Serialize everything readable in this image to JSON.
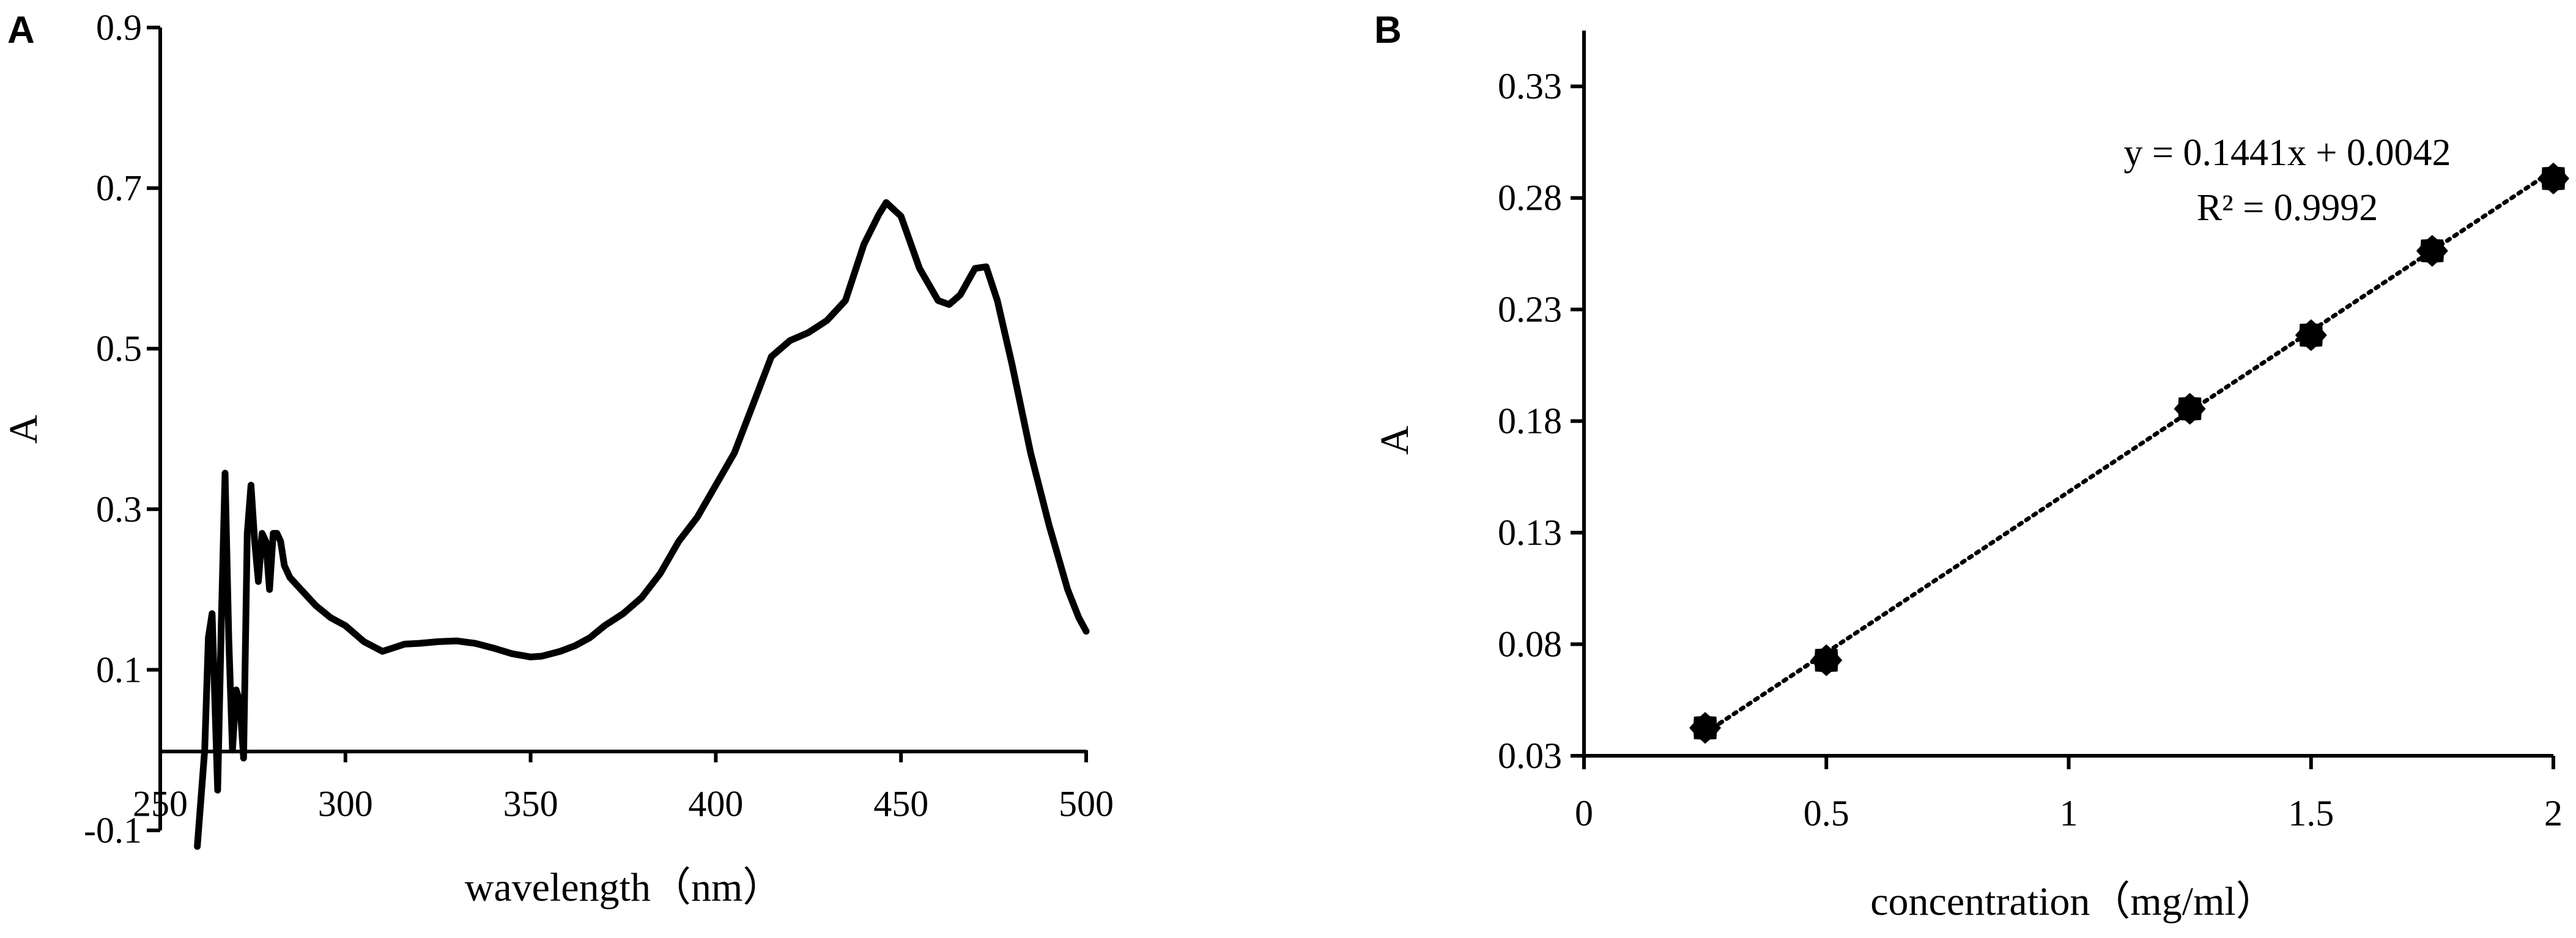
{
  "chart_data": [
    {
      "panel": "A",
      "type": "line",
      "xlabel": "wavelength（nm）",
      "ylabel": "A",
      "xlim": [
        250,
        500
      ],
      "ylim": [
        -0.1,
        0.9
      ],
      "x_ticks": [
        250,
        300,
        350,
        400,
        450,
        500
      ],
      "y_ticks": [
        -0.1,
        0.1,
        0.3,
        0.5,
        0.7,
        0.9
      ],
      "x_tick_labels": [
        "250",
        "300",
        "350",
        "400",
        "450",
        "500"
      ],
      "y_tick_labels": [
        "-0.1",
        "0.1",
        "0.3",
        "0.5",
        "0.7",
        "0.9"
      ],
      "grid": false,
      "series": [
        {
          "x": [
            260,
            262,
            263,
            264,
            265.5,
            266.5,
            267.5,
            268.5,
            269.5,
            270.5,
            271.5,
            272.5,
            273.5,
            274.5,
            275.5,
            276.5,
            277.5,
            278.5,
            279.5,
            280.5,
            281.5,
            282.5,
            283.5,
            285,
            288,
            292,
            296,
            300,
            305,
            310,
            312,
            316,
            320,
            325,
            330,
            335,
            340,
            345,
            350,
            353,
            358,
            362,
            366,
            370,
            375,
            380,
            385,
            390,
            395,
            400,
            405,
            410,
            415,
            420,
            425,
            430,
            435,
            440,
            444,
            446,
            450,
            455,
            460,
            463,
            466,
            470,
            473,
            476,
            480,
            485,
            490,
            495,
            498,
            500
          ],
          "y": [
            -0.12,
            0.0,
            0.14,
            0.17,
            -0.05,
            0.16,
            0.345,
            0.14,
            0.0,
            0.075,
            0.06,
            -0.01,
            0.27,
            0.33,
            0.26,
            0.21,
            0.27,
            0.26,
            0.2,
            0.27,
            0.27,
            0.26,
            0.23,
            0.215,
            0.2,
            0.18,
            0.165,
            0.155,
            0.135,
            0.123,
            0.126,
            0.132,
            0.133,
            0.135,
            0.136,
            0.133,
            0.127,
            0.12,
            0.116,
            0.117,
            0.123,
            0.13,
            0.14,
            0.155,
            0.17,
            0.19,
            0.22,
            0.26,
            0.29,
            0.33,
            0.37,
            0.43,
            0.49,
            0.51,
            0.52,
            0.535,
            0.56,
            0.63,
            0.667,
            0.682,
            0.665,
            0.6,
            0.56,
            0.555,
            0.567,
            0.6,
            0.602,
            0.56,
            0.48,
            0.37,
            0.28,
            0.2,
            0.165,
            0.148
          ]
        }
      ]
    },
    {
      "panel": "B",
      "type": "scatter",
      "xlabel": "concentration（mg/ml）",
      "ylabel": "A",
      "xlim": [
        0,
        2
      ],
      "ylim": [
        0.03,
        0.355
      ],
      "x_ticks": [
        0,
        0.5,
        1,
        1.5,
        2
      ],
      "y_ticks": [
        0.03,
        0.08,
        0.13,
        0.18,
        0.23,
        0.28,
        0.33
      ],
      "x_tick_labels": [
        "0",
        "0.5",
        "1",
        "1.5",
        "2"
      ],
      "y_tick_labels": [
        "0.03",
        "0.08",
        "0.13",
        "0.18",
        "0.23",
        "0.28",
        "0.33"
      ],
      "grid": false,
      "series": [
        {
          "x": [
            0.25,
            0.5,
            1.25,
            1.5,
            1.75,
            2.0
          ],
          "y": [
            0.0425,
            0.0728,
            0.1855,
            0.2185,
            0.2563,
            0.2887
          ]
        }
      ],
      "trendline": {
        "slope": 0.1441,
        "intercept": 0.0042,
        "x_from": 0.25,
        "x_to": 2.0
      },
      "annotations": [
        "y = 0.1441x + 0.0042",
        "R² = 0.9992"
      ]
    }
  ]
}
